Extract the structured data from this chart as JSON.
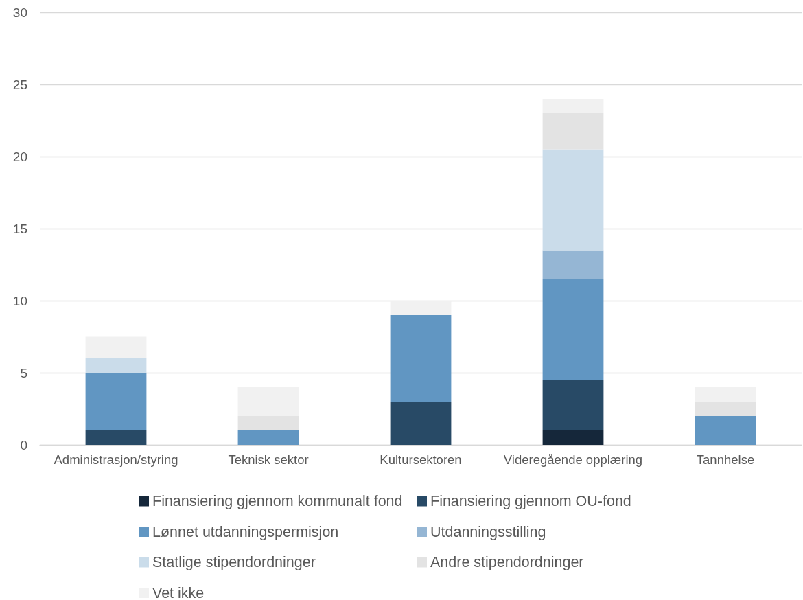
{
  "chart_data": {
    "type": "bar",
    "stacked": true,
    "categories": [
      "Administrasjon/styring",
      "Teknisk sektor",
      "Kultursektoren",
      "Videregående opplæring",
      "Tannhelse"
    ],
    "series": [
      {
        "name": "Finansiering gjennom kommunalt fond",
        "color": "#15273a",
        "values": [
          null,
          null,
          null,
          1,
          null
        ]
      },
      {
        "name": "Finansiering gjennom OU-fond",
        "color": "#284a66",
        "values": [
          1,
          null,
          3,
          3.5,
          null
        ]
      },
      {
        "name": "Lønnet utdanningspermisjon",
        "color": "#6196c2",
        "values": [
          4,
          1,
          6,
          7,
          2
        ]
      },
      {
        "name": "Utdanningsstilling",
        "color": "#95b6d4",
        "values": [
          null,
          null,
          null,
          2,
          null
        ]
      },
      {
        "name": "Statlige stipendordninger",
        "color": "#cadcea",
        "values": [
          1,
          null,
          null,
          7,
          null
        ]
      },
      {
        "name": "Andre stipendordninger",
        "color": "#e3e3e3",
        "values": [
          null,
          1,
          null,
          2.5,
          1
        ]
      },
      {
        "name": "Vet ikke",
        "color": "#f1f1f1",
        "values": [
          1.5,
          2,
          1,
          1,
          1
        ]
      }
    ],
    "ylim": [
      0,
      30
    ],
    "yticks": [
      0,
      5,
      10,
      15,
      20,
      25,
      30
    ],
    "grid": "y",
    "legend": "bottom"
  }
}
